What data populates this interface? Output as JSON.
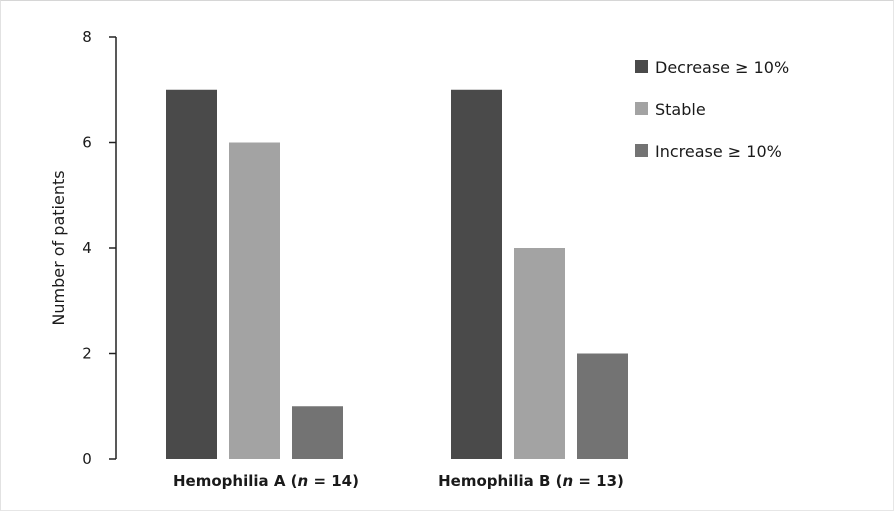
{
  "chart_data": {
    "type": "bar",
    "title": "",
    "xlabel": "",
    "ylabel": "Number of patients",
    "ylim": [
      0,
      8
    ],
    "yticks": [
      0,
      2,
      4,
      6,
      8
    ],
    "grid": false,
    "legend_position": "top-right",
    "categories": [
      {
        "name": "Hemophilia",
        "letter": "A",
        "n_label": "n",
        "n_value": "= 14"
      },
      {
        "name": "Hemophilia",
        "letter": "B",
        "n_label": "n",
        "n_value": "= 13"
      }
    ],
    "series": [
      {
        "name": "Decrease ≥ 10%",
        "color": "#4a4a4a",
        "values": [
          7,
          7
        ]
      },
      {
        "name": "Stable",
        "color": "#a3a3a3",
        "values": [
          6,
          4
        ]
      },
      {
        "name": "Increase ≥ 10%",
        "color": "#737373",
        "values": [
          1,
          2
        ]
      }
    ]
  }
}
